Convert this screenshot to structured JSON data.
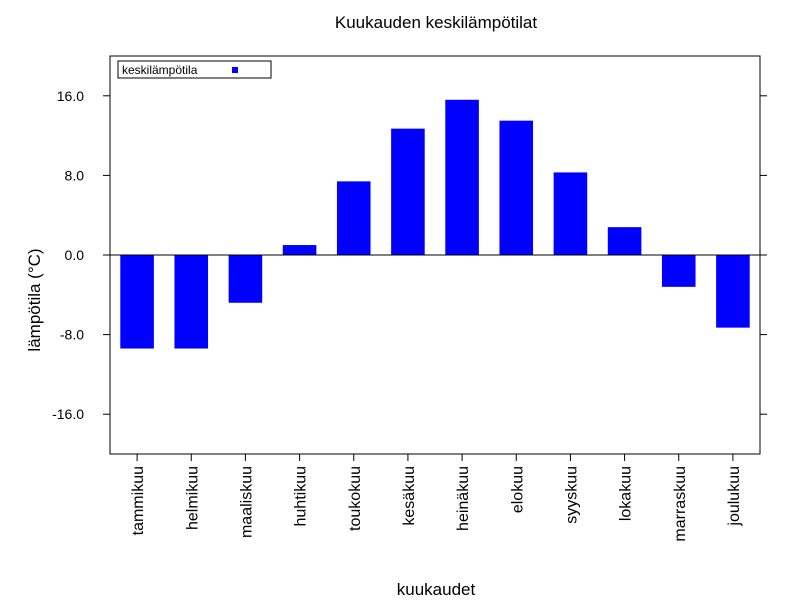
{
  "chart_data": {
    "type": "bar",
    "title": "Kuukauden keskilämpötilat",
    "xlabel": "kuukaudet",
    "ylabel": "lämpötila (°C)",
    "categories": [
      "tammikuu",
      "helmikuu",
      "maaliskuu",
      "huhtikuu",
      "toukokuu",
      "kesäkuu",
      "heinäkuu",
      "elokuu",
      "syyskuu",
      "lokakuu",
      "marraskuu",
      "joulukuu"
    ],
    "series": [
      {
        "name": "keskilämpötila",
        "color": "#0000ff",
        "values": [
          -9.4,
          -9.4,
          -4.8,
          1.0,
          7.4,
          12.7,
          15.6,
          13.5,
          8.3,
          2.8,
          -3.2,
          -7.3
        ]
      }
    ],
    "ylim": [
      -20,
      20
    ],
    "yticks": [
      -16,
      -8,
      0,
      8,
      16
    ],
    "ytick_labels": [
      "-16.0",
      "-8.0",
      "0.0",
      "8.0",
      "16.0"
    ],
    "zero_line": true,
    "grid": false,
    "legend_position": "top-left"
  }
}
